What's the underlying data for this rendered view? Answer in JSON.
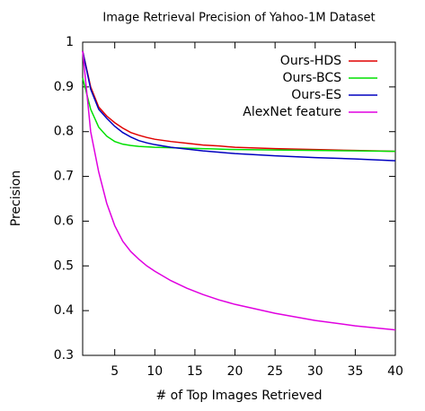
{
  "chart_data": {
    "type": "line",
    "title": "Image Retrieval Precision of Yahoo-1M Dataset",
    "xlabel": "# of Top Images Retrieved",
    "ylabel": "Precision",
    "x": [
      1,
      2,
      3,
      4,
      5,
      6,
      7,
      8,
      9,
      10,
      12,
      14,
      16,
      18,
      20,
      25,
      30,
      35,
      40
    ],
    "series": [
      {
        "name": "Ours-HDS",
        "color": "#e00000",
        "values": [
          0.98,
          0.9,
          0.855,
          0.835,
          0.82,
          0.808,
          0.798,
          0.792,
          0.787,
          0.783,
          0.778,
          0.774,
          0.77,
          0.768,
          0.765,
          0.762,
          0.76,
          0.758,
          0.756
        ]
      },
      {
        "name": "Ours-BCS",
        "color": "#00e000",
        "values": [
          0.92,
          0.85,
          0.81,
          0.79,
          0.778,
          0.772,
          0.769,
          0.767,
          0.766,
          0.765,
          0.764,
          0.763,
          0.762,
          0.761,
          0.76,
          0.759,
          0.758,
          0.757,
          0.756
        ]
      },
      {
        "name": "Ours-ES",
        "color": "#0000c0",
        "values": [
          0.98,
          0.895,
          0.85,
          0.83,
          0.812,
          0.798,
          0.788,
          0.78,
          0.775,
          0.771,
          0.765,
          0.761,
          0.757,
          0.754,
          0.751,
          0.746,
          0.742,
          0.739,
          0.735
        ]
      },
      {
        "name": "AlexNet feature",
        "color": "#e000e0",
        "values": [
          0.98,
          0.8,
          0.71,
          0.64,
          0.59,
          0.555,
          0.532,
          0.515,
          0.5,
          0.488,
          0.467,
          0.45,
          0.436,
          0.424,
          0.414,
          0.394,
          0.378,
          0.366,
          0.357
        ]
      }
    ],
    "xlim": [
      1,
      40
    ],
    "xticks": [
      5,
      10,
      15,
      20,
      25,
      30,
      35,
      40
    ],
    "ylim": [
      0.3,
      1
    ],
    "yticks": [
      0.3,
      0.4,
      0.5,
      0.6,
      0.7,
      0.8,
      0.9,
      1
    ],
    "legend": "upper right"
  }
}
